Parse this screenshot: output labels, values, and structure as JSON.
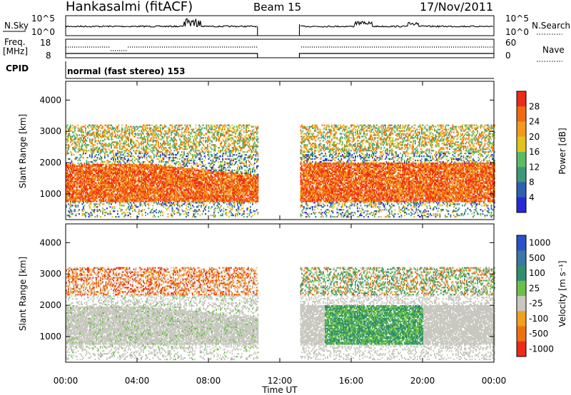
{
  "header": {
    "station": "Hankasalmi (fitACF)",
    "beam": "Beam 15",
    "date": "17/Nov/2011"
  },
  "side_labels": {
    "nsky": "N.Sky",
    "nsearch": "N.Search",
    "freq": "Freq.",
    "freq_unit": "[MHz]",
    "nave": "Nave",
    "cpid": "CPID"
  },
  "cpid_text": "normal (fast stereo) 153",
  "colors": {
    "power_scale": [
      "#2828d8",
      "#2f5fb0",
      "#3a9a78",
      "#5dbb63",
      "#e0c41c",
      "#f39a1e",
      "#f26a10",
      "#ee2a18"
    ],
    "velocity_scale": [
      "#2b50c8",
      "#3a76a8",
      "#2f8f6e",
      "#6cc04a",
      "#c8c8c0",
      "#f0a020",
      "#f07010",
      "#ee2a18"
    ]
  },
  "chart_data": [
    {
      "type": "line",
      "name": "noise-panel",
      "left_ticks": [
        "10^5",
        "10^0"
      ],
      "right_ticks": [
        "10^5",
        "10^0"
      ],
      "left_label": "N.Sky",
      "right_label": "N.Search",
      "data_gap": [
        10.75,
        13.1
      ],
      "x_range": [
        0,
        24
      ]
    },
    {
      "type": "line",
      "name": "freq-nave-panel",
      "left_ticks": [
        "18",
        "8"
      ],
      "right_ticks": [
        "60",
        "0"
      ],
      "left_label": "Freq. [MHz]",
      "right_label": "Nave",
      "data_gap": [
        10.75,
        13.1
      ]
    },
    {
      "type": "heatmap",
      "name": "power",
      "ylabel": "Slant Range [km]",
      "y_ticks": [
        "4000",
        "3000",
        "2000",
        "1000"
      ],
      "ylim": [
        180,
        4600
      ],
      "colorbar_label": "Power [dB]",
      "colorbar_ticks": [
        "28",
        "24",
        "20",
        "16",
        "12",
        "8",
        "4"
      ],
      "data_gap": [
        10.75,
        13.1
      ]
    },
    {
      "type": "heatmap",
      "name": "velocity",
      "ylabel": "Slant Range [km]",
      "y_ticks": [
        "4000",
        "3000",
        "2000",
        "1000"
      ],
      "ylim": [
        180,
        4600
      ],
      "colorbar_label": "Velocity [m s⁻¹]",
      "colorbar_ticks": [
        "1000",
        "500",
        "100",
        "25",
        "-25",
        "-100",
        "-500",
        "-1000"
      ],
      "xlabel": "Time UT",
      "x_ticks": [
        "00:00",
        "04:00",
        "08:00",
        "12:00",
        "16:00",
        "20:00",
        "00:00"
      ],
      "x_range": [
        0,
        24
      ],
      "data_gap": [
        10.75,
        13.1
      ]
    }
  ]
}
